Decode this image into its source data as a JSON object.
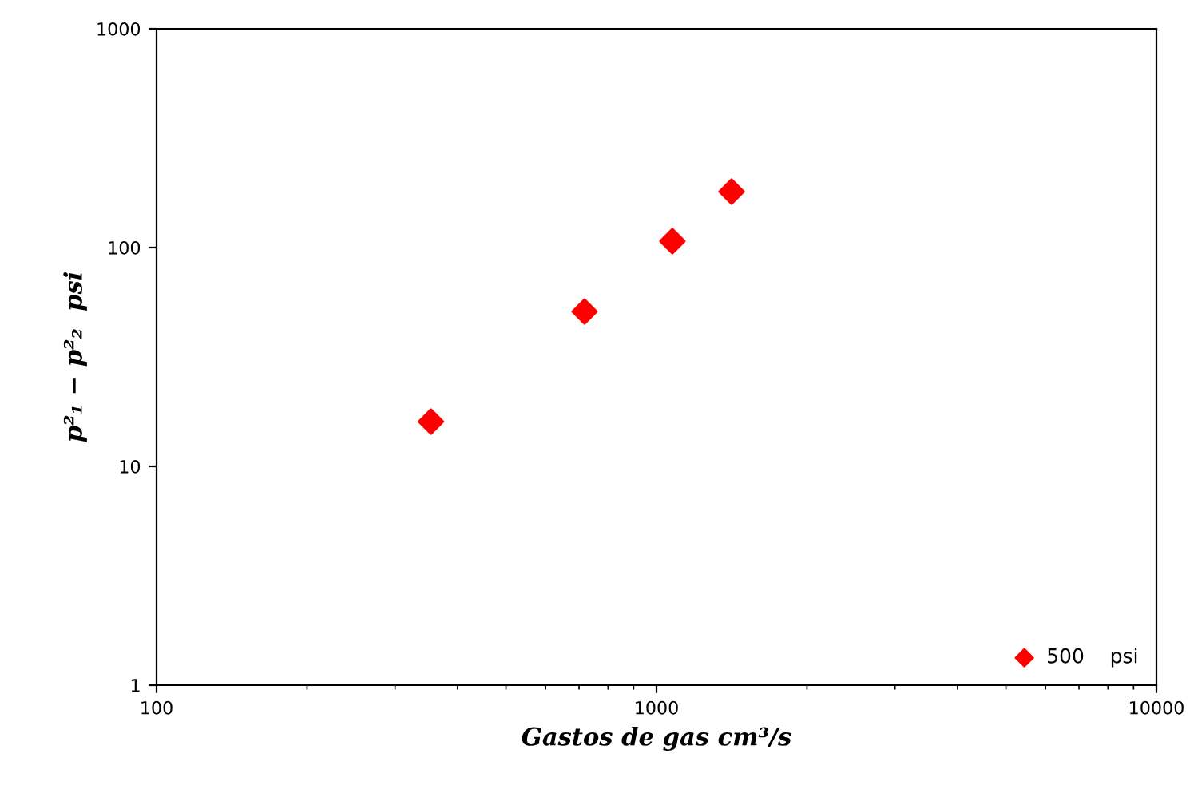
{
  "chart_data": {
    "type": "scatter",
    "xlabel": "Gastos de gas cm³/s",
    "ylabel": "p²₁ − p²₂  psi",
    "log": "xy",
    "xlim": [
      100,
      10000
    ],
    "ylim": [
      1,
      1000
    ],
    "xticks": [
      100,
      1000,
      10000
    ],
    "yticks": [
      1,
      10,
      100,
      1000
    ],
    "grid": false,
    "legend": "bottom right",
    "marker": "diamond",
    "x": [
      354,
      718,
      1076,
      1413
    ],
    "series": [
      {
        "name": "500    psi",
        "color": "#ff0000",
        "values": [
          16,
          51,
          107,
          180
        ]
      }
    ]
  }
}
